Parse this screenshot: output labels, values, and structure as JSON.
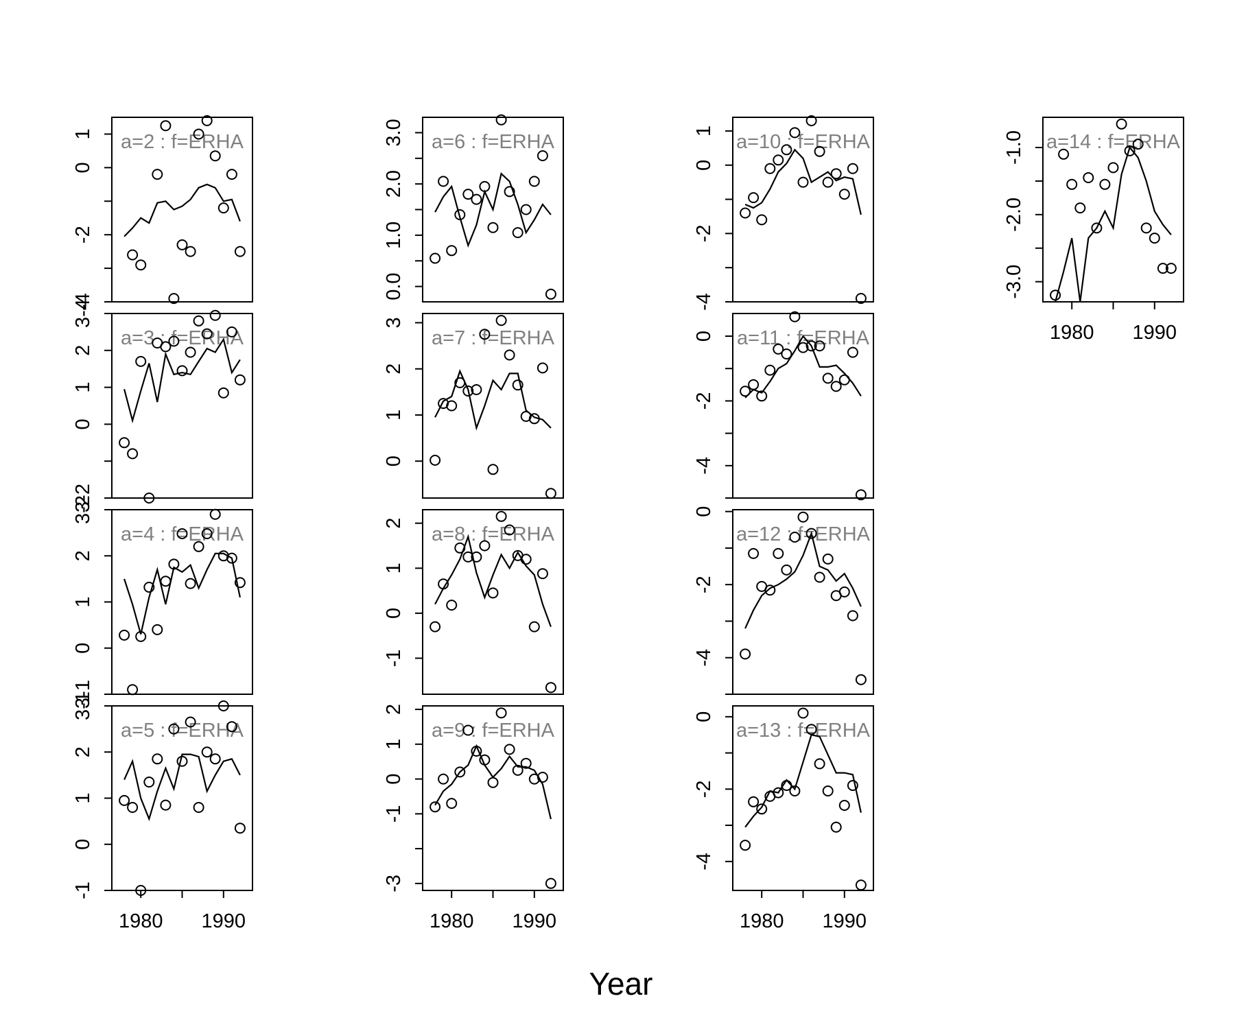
{
  "chart_data": {
    "type": "scatter",
    "xlabel": "Year",
    "x_tick_labels": [
      "1980",
      "1990"
    ],
    "x_ticks": [
      1980,
      1985,
      1990
    ],
    "xlim": [
      1976.5,
      1993.5
    ],
    "point_style": "open-circle",
    "line_style": "solid-black",
    "colors": {
      "axis": "#000000",
      "points": "#000000",
      "line": "#000000",
      "panel_label": "#808080"
    },
    "panels": [
      {
        "label": "a=2  :  f=ERHA",
        "ylim": [
          -4,
          1.5
        ],
        "yticks": [
          -4,
          -3,
          -2,
          -1,
          0,
          1
        ],
        "ytick_labels": [
          "-4",
          "",
          "-2",
          "",
          "0",
          "1"
        ],
        "years": [
          1978,
          1979,
          1980,
          1981,
          1982,
          1983,
          1984,
          1985,
          1986,
          1987,
          1988,
          1989,
          1990,
          1991,
          1992
        ],
        "observed": [
          null,
          -2.6,
          -2.9,
          null,
          -0.2,
          1.25,
          -3.9,
          -2.3,
          -2.5,
          1.0,
          1.4,
          0.35,
          -1.2,
          -0.2,
          -2.5
        ],
        "fitted": [
          -2.05,
          -1.8,
          -1.5,
          -1.65,
          -1.05,
          -1.0,
          -1.25,
          -1.15,
          -0.95,
          -0.6,
          -0.5,
          -0.6,
          -1.0,
          -0.95,
          -1.6
        ]
      },
      {
        "label": "a=3  :  f=ERHA",
        "ylim": [
          -2,
          3
        ],
        "yticks": [
          -2,
          -1,
          0,
          1,
          2,
          3
        ],
        "ytick_labels": [
          "3-2",
          "",
          "0",
          "1",
          "2",
          "3-4"
        ],
        "years": [
          1978,
          1979,
          1980,
          1981,
          1982,
          1983,
          1984,
          1985,
          1986,
          1987,
          1988,
          1989,
          1990,
          1991,
          1992
        ],
        "observed": [
          -0.5,
          -0.8,
          1.7,
          -2.0,
          2.2,
          2.1,
          2.25,
          1.45,
          1.95,
          2.8,
          2.45,
          2.95,
          0.85,
          2.5,
          1.2
        ],
        "fitted": [
          0.95,
          0.1,
          0.9,
          1.65,
          0.6,
          1.9,
          1.35,
          1.4,
          1.35,
          1.7,
          2.05,
          1.95,
          2.3,
          1.4,
          1.75
        ]
      },
      {
        "label": "a=4  :  f=ERHA",
        "ylim": [
          -1,
          3
        ],
        "yticks": [
          -1,
          0,
          1,
          2,
          3
        ],
        "ytick_labels": [
          "3-1",
          "0",
          "1",
          "2",
          "3-2"
        ],
        "years": [
          1978,
          1979,
          1980,
          1981,
          1982,
          1983,
          1984,
          1985,
          1986,
          1987,
          1988,
          1989,
          1990,
          1991,
          1992
        ],
        "observed": [
          0.28,
          -0.9,
          0.25,
          1.32,
          0.4,
          1.45,
          1.82,
          2.48,
          1.4,
          2.2,
          2.48,
          2.9,
          2.0,
          1.95,
          1.42
        ],
        "fitted": [
          1.5,
          0.95,
          0.3,
          1.1,
          1.7,
          0.95,
          1.75,
          1.65,
          1.8,
          1.3,
          1.7,
          2.05,
          2.05,
          1.95,
          1.1
        ]
      },
      {
        "label": "a=5  :  f=ERHA",
        "ylim": [
          -1,
          3
        ],
        "yticks": [
          -1,
          0,
          1,
          2,
          3
        ],
        "ytick_labels": [
          "-1",
          "0",
          "1",
          "2",
          "3-1"
        ],
        "years": [
          1978,
          1979,
          1980,
          1981,
          1982,
          1983,
          1984,
          1985,
          1986,
          1987,
          1988,
          1989,
          1990,
          1991,
          1992
        ],
        "observed": [
          0.95,
          0.8,
          -1.0,
          1.35,
          1.85,
          0.85,
          2.5,
          1.8,
          2.65,
          0.8,
          2.0,
          1.85,
          3.0,
          2.55,
          0.35
        ],
        "fitted": [
          1.4,
          1.8,
          1.0,
          0.55,
          1.15,
          1.65,
          1.2,
          1.95,
          1.95,
          1.9,
          1.15,
          1.5,
          1.8,
          1.85,
          1.5
        ]
      },
      {
        "label": "a=6  :  f=ERHA",
        "ylim": [
          -0.3,
          3.3
        ],
        "yticks": [
          0,
          0.5,
          1,
          1.5,
          2,
          2.5,
          3
        ],
        "ytick_labels": [
          "0.0",
          "",
          "1.0",
          "",
          "2.0",
          "",
          "3.0"
        ],
        "years": [
          1978,
          1979,
          1980,
          1981,
          1982,
          1983,
          1984,
          1985,
          1986,
          1987,
          1988,
          1989,
          1990,
          1991,
          1992
        ],
        "observed": [
          0.55,
          2.05,
          0.7,
          1.4,
          1.8,
          1.7,
          1.95,
          1.15,
          3.25,
          1.85,
          1.05,
          1.5,
          2.05,
          2.55,
          -0.15
        ],
        "fitted": [
          1.45,
          1.75,
          1.95,
          1.35,
          0.8,
          1.2,
          1.85,
          1.5,
          2.2,
          2.05,
          1.6,
          1.05,
          1.3,
          1.6,
          1.4
        ]
      },
      {
        "label": "a=7  :  f=ERHA",
        "ylim": [
          -0.8,
          3.2
        ],
        "yticks": [
          0,
          1,
          2,
          3
        ],
        "ytick_labels": [
          "0",
          "1",
          "2",
          "3"
        ],
        "years": [
          1978,
          1979,
          1980,
          1981,
          1982,
          1983,
          1984,
          1985,
          1986,
          1987,
          1988,
          1989,
          1990,
          1991,
          1992
        ],
        "observed": [
          0.02,
          1.25,
          1.2,
          1.7,
          1.52,
          1.55,
          2.75,
          -0.18,
          3.05,
          2.3,
          1.65,
          0.97,
          0.92,
          2.02,
          -0.7
        ],
        "fitted": [
          0.95,
          1.3,
          1.4,
          1.95,
          1.55,
          0.72,
          1.2,
          1.75,
          1.55,
          1.9,
          1.9,
          1.1,
          0.95,
          0.9,
          0.72
        ]
      },
      {
        "label": "a=8  :  f=ERHA",
        "ylim": [
          -1.8,
          2.3
        ],
        "yticks": [
          -1,
          0,
          1,
          2
        ],
        "ytick_labels": [
          "-1",
          "0",
          "1",
          "2"
        ],
        "years": [
          1978,
          1979,
          1980,
          1981,
          1982,
          1983,
          1984,
          1985,
          1986,
          1987,
          1988,
          1989,
          1990,
          1991,
          1992
        ],
        "observed": [
          -0.3,
          0.65,
          0.18,
          1.45,
          1.25,
          1.25,
          1.5,
          0.45,
          2.15,
          1.85,
          1.28,
          1.2,
          -0.3,
          0.88,
          -1.65
        ],
        "fitted": [
          0.2,
          0.55,
          0.85,
          1.2,
          1.7,
          0.9,
          0.35,
          0.85,
          1.3,
          1.0,
          1.35,
          1.05,
          0.85,
          0.2,
          -0.3
        ]
      },
      {
        "label": "a=9  :  f=ERHA",
        "ylim": [
          -3.2,
          2.1
        ],
        "yticks": [
          -3,
          -2,
          -1,
          0,
          1,
          2
        ],
        "ytick_labels": [
          "-3",
          "",
          "-1",
          "0",
          "1",
          "2"
        ],
        "years": [
          1978,
          1979,
          1980,
          1981,
          1982,
          1983,
          1984,
          1985,
          1986,
          1987,
          1988,
          1989,
          1990,
          1991,
          1992
        ],
        "observed": [
          -0.8,
          0.0,
          -0.7,
          0.2,
          1.4,
          0.8,
          0.55,
          -0.1,
          1.9,
          0.85,
          0.25,
          0.45,
          0.0,
          0.05,
          -3.0
        ],
        "fitted": [
          -0.75,
          -0.35,
          -0.15,
          0.2,
          0.4,
          0.95,
          0.4,
          0.05,
          0.3,
          0.65,
          0.35,
          0.35,
          0.25,
          -0.15,
          -1.15
        ]
      },
      {
        "label": "a=10  :  f=ERHA",
        "ylim": [
          -4,
          1.4
        ],
        "yticks": [
          -4,
          -3,
          -2,
          -1,
          0,
          1
        ],
        "ytick_labels": [
          "-4",
          "",
          "-2",
          "",
          "0",
          "1"
        ],
        "years": [
          1978,
          1979,
          1980,
          1981,
          1982,
          1983,
          1984,
          1985,
          1986,
          1987,
          1988,
          1989,
          1990,
          1991,
          1992
        ],
        "observed": [
          -1.4,
          -0.95,
          -1.6,
          -0.1,
          0.15,
          0.45,
          0.95,
          -0.5,
          1.3,
          0.4,
          -0.5,
          -0.25,
          -0.85,
          -0.1,
          -3.9
        ],
        "fitted": [
          -1.15,
          -1.25,
          -1.1,
          -0.7,
          -0.2,
          0.05,
          0.45,
          0.2,
          -0.5,
          -0.35,
          -0.2,
          -0.45,
          -0.35,
          -0.4,
          -1.45
        ]
      },
      {
        "label": "a=11  :  f=ERHA",
        "ylim": [
          -5,
          0.7
        ],
        "yticks": [
          -5,
          -4,
          -3,
          -2,
          -1,
          0
        ],
        "ytick_labels": [
          "",
          "-4",
          "",
          "-2",
          "",
          "0"
        ],
        "years": [
          1978,
          1979,
          1980,
          1981,
          1982,
          1983,
          1984,
          1985,
          1986,
          1987,
          1988,
          1989,
          1990,
          1991,
          1992
        ],
        "observed": [
          -1.7,
          -1.5,
          -1.85,
          -1.05,
          -0.4,
          -0.55,
          0.6,
          -0.35,
          -0.3,
          -0.3,
          -1.3,
          -1.55,
          -1.35,
          -0.5,
          -4.9
        ],
        "fitted": [
          -1.9,
          -1.65,
          -1.75,
          -1.4,
          -1.0,
          -0.85,
          -0.45,
          0.0,
          -0.3,
          -0.95,
          -0.95,
          -0.9,
          -1.15,
          -1.45,
          -1.85
        ]
      },
      {
        "label": "a=12  :  f=ERHA",
        "ylim": [
          -5,
          0.05
        ],
        "yticks": [
          -5,
          -4,
          -3,
          -2,
          -1,
          0
        ],
        "ytick_labels": [
          "",
          "-4",
          "",
          "-2",
          "",
          "0"
        ],
        "years": [
          1978,
          1979,
          1980,
          1981,
          1982,
          1983,
          1984,
          1985,
          1986,
          1987,
          1988,
          1989,
          1990,
          1991,
          1992
        ],
        "observed": [
          -3.9,
          -1.15,
          -2.05,
          -2.15,
          -1.15,
          -1.6,
          -0.7,
          -0.15,
          -0.6,
          -1.8,
          -1.3,
          -2.3,
          -2.2,
          -2.85,
          -4.6
        ],
        "fitted": [
          -3.2,
          -2.7,
          -2.3,
          -2.1,
          -2.0,
          -1.85,
          -1.65,
          -1.2,
          -0.6,
          -1.5,
          -1.6,
          -1.9,
          -1.7,
          -2.1,
          -2.6
        ]
      },
      {
        "label": "a=13  :  f=ERHA",
        "ylim": [
          -4.8,
          0.3
        ],
        "yticks": [
          -4,
          -3,
          -2,
          -1,
          0
        ],
        "ytick_labels": [
          "-4",
          "",
          "-2",
          "",
          "0"
        ],
        "years": [
          1978,
          1979,
          1980,
          1981,
          1982,
          1983,
          1984,
          1985,
          1986,
          1987,
          1988,
          1989,
          1990,
          1991,
          1992
        ],
        "observed": [
          -3.55,
          -2.35,
          -2.55,
          -2.2,
          -2.1,
          -1.9,
          -2.05,
          0.1,
          -0.35,
          -1.3,
          -2.05,
          -3.05,
          -2.45,
          -1.9,
          -4.65
        ],
        "fitted": [
          -3.05,
          -2.75,
          -2.5,
          -2.05,
          -2.1,
          -1.75,
          -2.0,
          -1.25,
          -0.5,
          -0.55,
          -1.05,
          -1.55,
          -1.55,
          -1.6,
          -2.65
        ]
      },
      {
        "label": "a=14  :  f=ERHA",
        "ylim": [
          -3.3,
          -0.55
        ],
        "yticks": [
          -3,
          -2.5,
          -2,
          -1.5,
          -1
        ],
        "ytick_labels": [
          "-3.0",
          "",
          "-2.0",
          "",
          "-1.0"
        ],
        "years": [
          1978,
          1979,
          1980,
          1981,
          1982,
          1983,
          1984,
          1985,
          1986,
          1987,
          1988,
          1989,
          1990,
          1991,
          1992
        ],
        "observed": [
          -3.2,
          -1.1,
          -1.55,
          -1.9,
          -1.45,
          -2.2,
          -1.55,
          -1.3,
          -0.65,
          -1.05,
          -0.95,
          -2.2,
          -2.35,
          -2.8,
          -2.8
        ],
        "fitted": [
          -3.3,
          -2.85,
          -2.35,
          -3.3,
          -2.35,
          -2.2,
          -1.95,
          -2.2,
          -1.4,
          -1.0,
          -1.15,
          -1.5,
          -1.95,
          -2.15,
          -2.3
        ]
      }
    ]
  }
}
